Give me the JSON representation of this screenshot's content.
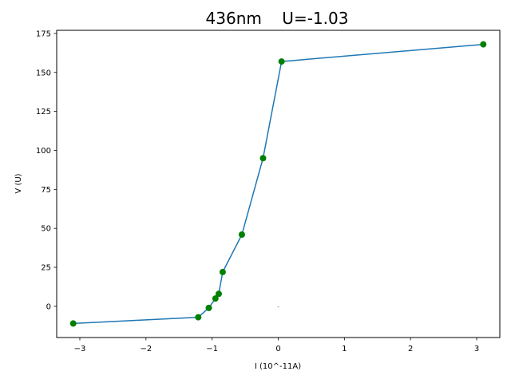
{
  "chart_data": {
    "type": "line",
    "title": "436nm    U=-1.03",
    "xlabel": "I (10^-11A)",
    "ylabel": "V (U)",
    "xlim": [
      -3.35,
      3.35
    ],
    "ylim": [
      -20,
      177
    ],
    "xticks": [
      -3,
      -2,
      -1,
      0,
      1,
      2,
      3
    ],
    "xtick_labels": [
      "−3",
      "−2",
      "−1",
      "0",
      "1",
      "2",
      "3"
    ],
    "yticks": [
      0,
      25,
      50,
      75,
      100,
      125,
      150,
      175
    ],
    "ytick_labels": [
      "0",
      "25",
      "50",
      "75",
      "100",
      "125",
      "150",
      "175"
    ],
    "grid": false,
    "line_color": "#1f77b4",
    "marker_color": "#008000",
    "series": [
      {
        "x": [
          -3.1,
          -1.21,
          -1.05,
          -0.95,
          -0.9,
          -0.84,
          -0.55,
          -0.23,
          0.05,
          3.1
        ],
        "y": [
          -11,
          -7,
          -1,
          5,
          8,
          22,
          46,
          95,
          157,
          168
        ]
      }
    ],
    "annotations": [
      {
        "x": 0.0,
        "y": 0.0,
        "text": "-"
      }
    ]
  }
}
